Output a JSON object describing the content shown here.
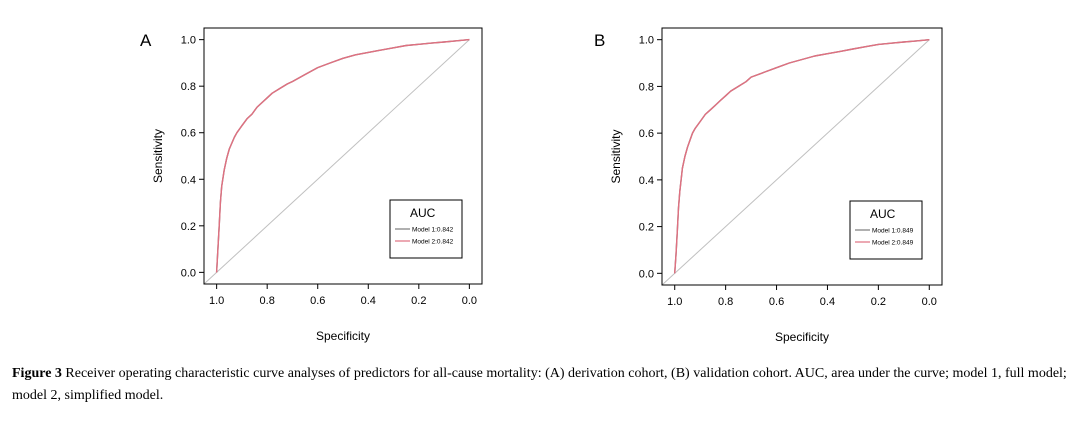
{
  "chart_data": [
    {
      "panel": "A",
      "type": "line",
      "xlabel": "Specificity",
      "ylabel": "Sensitivity",
      "xlim": [
        1.0,
        0.0
      ],
      "ylim": [
        0.0,
        1.0
      ],
      "x_ticks": [
        "1.0",
        "0.8",
        "0.6",
        "0.4",
        "0.2",
        "0.0"
      ],
      "y_ticks": [
        "0.0",
        "0.2",
        "0.4",
        "0.6",
        "0.8",
        "1.0"
      ],
      "legend_title": "AUC",
      "legend_position": "bottom-right",
      "series": [
        {
          "name": "Model 1:0.842",
          "color": "#7b7b7b",
          "specificity": [
            1.0,
            0.995,
            0.99,
            0.985,
            0.98,
            0.97,
            0.96,
            0.95,
            0.93,
            0.92,
            0.9,
            0.88,
            0.86,
            0.84,
            0.82,
            0.8,
            0.78,
            0.75,
            0.72,
            0.7,
            0.65,
            0.6,
            0.55,
            0.5,
            0.45,
            0.4,
            0.35,
            0.3,
            0.25,
            0.2,
            0.15,
            0.1,
            0.05,
            0.0
          ],
          "sensitivity": [
            0.0,
            0.1,
            0.2,
            0.3,
            0.37,
            0.44,
            0.49,
            0.53,
            0.58,
            0.6,
            0.63,
            0.66,
            0.68,
            0.71,
            0.73,
            0.75,
            0.77,
            0.79,
            0.81,
            0.82,
            0.85,
            0.88,
            0.9,
            0.92,
            0.935,
            0.945,
            0.955,
            0.965,
            0.975,
            0.98,
            0.985,
            0.99,
            0.995,
            1.0
          ]
        },
        {
          "name": "Model 2:0.842",
          "color": "#e07080",
          "specificity": [
            1.0,
            0.995,
            0.99,
            0.985,
            0.98,
            0.97,
            0.96,
            0.95,
            0.93,
            0.92,
            0.9,
            0.88,
            0.86,
            0.84,
            0.82,
            0.8,
            0.78,
            0.75,
            0.72,
            0.7,
            0.65,
            0.6,
            0.55,
            0.5,
            0.45,
            0.4,
            0.35,
            0.3,
            0.25,
            0.2,
            0.15,
            0.1,
            0.05,
            0.0
          ],
          "sensitivity": [
            0.0,
            0.1,
            0.2,
            0.3,
            0.37,
            0.44,
            0.49,
            0.53,
            0.58,
            0.6,
            0.63,
            0.66,
            0.68,
            0.71,
            0.73,
            0.75,
            0.77,
            0.79,
            0.81,
            0.82,
            0.85,
            0.88,
            0.9,
            0.92,
            0.935,
            0.945,
            0.955,
            0.965,
            0.975,
            0.98,
            0.985,
            0.99,
            0.995,
            1.0
          ]
        },
        {
          "name": "reference",
          "color": "#c0c0c0",
          "specificity": [
            1.05,
            0.0
          ],
          "sensitivity": [
            -0.05,
            1.0
          ]
        }
      ]
    },
    {
      "panel": "B",
      "type": "line",
      "xlabel": "Specificity",
      "ylabel": "Sensitivity",
      "xlim": [
        1.0,
        0.0
      ],
      "ylim": [
        0.0,
        1.0
      ],
      "x_ticks": [
        "1.0",
        "0.8",
        "0.6",
        "0.4",
        "0.2",
        "0.0"
      ],
      "y_ticks": [
        "0.0",
        "0.2",
        "0.4",
        "0.6",
        "0.8",
        "1.0"
      ],
      "legend_title": "AUC",
      "legend_position": "bottom-right",
      "series": [
        {
          "name": "Model 1:0.849",
          "color": "#7b7b7b",
          "specificity": [
            1.0,
            0.995,
            0.99,
            0.985,
            0.98,
            0.975,
            0.97,
            0.96,
            0.95,
            0.94,
            0.93,
            0.92,
            0.9,
            0.88,
            0.86,
            0.84,
            0.82,
            0.8,
            0.78,
            0.75,
            0.72,
            0.7,
            0.65,
            0.6,
            0.55,
            0.5,
            0.45,
            0.4,
            0.35,
            0.3,
            0.25,
            0.2,
            0.15,
            0.1,
            0.05,
            0.0
          ],
          "sensitivity": [
            0.0,
            0.08,
            0.18,
            0.28,
            0.35,
            0.4,
            0.45,
            0.5,
            0.54,
            0.57,
            0.6,
            0.62,
            0.65,
            0.68,
            0.7,
            0.72,
            0.74,
            0.76,
            0.78,
            0.8,
            0.82,
            0.84,
            0.86,
            0.88,
            0.9,
            0.915,
            0.93,
            0.94,
            0.95,
            0.96,
            0.97,
            0.98,
            0.985,
            0.99,
            0.995,
            1.0
          ]
        },
        {
          "name": "Model 2:0.849",
          "color": "#e07080",
          "specificity": [
            1.0,
            0.995,
            0.99,
            0.985,
            0.98,
            0.975,
            0.97,
            0.96,
            0.95,
            0.94,
            0.93,
            0.92,
            0.9,
            0.88,
            0.86,
            0.84,
            0.82,
            0.8,
            0.78,
            0.75,
            0.72,
            0.7,
            0.65,
            0.6,
            0.55,
            0.5,
            0.45,
            0.4,
            0.35,
            0.3,
            0.25,
            0.2,
            0.15,
            0.1,
            0.05,
            0.0
          ],
          "sensitivity": [
            0.0,
            0.08,
            0.18,
            0.28,
            0.35,
            0.4,
            0.45,
            0.5,
            0.54,
            0.57,
            0.6,
            0.62,
            0.65,
            0.68,
            0.7,
            0.72,
            0.74,
            0.76,
            0.78,
            0.8,
            0.82,
            0.84,
            0.86,
            0.88,
            0.9,
            0.915,
            0.93,
            0.94,
            0.95,
            0.96,
            0.97,
            0.98,
            0.985,
            0.99,
            0.995,
            1.0
          ]
        },
        {
          "name": "reference",
          "color": "#c0c0c0",
          "specificity": [
            1.05,
            0.0
          ],
          "sensitivity": [
            -0.05,
            1.0
          ]
        }
      ]
    }
  ],
  "caption": {
    "label": "Figure 3",
    "text": " Receiver operating characteristic curve analyses of predictors for all-cause mortality: (A) derivation cohort, (B) validation cohort. AUC, area under the curve; model 1, full model; model 2, simplified model."
  }
}
